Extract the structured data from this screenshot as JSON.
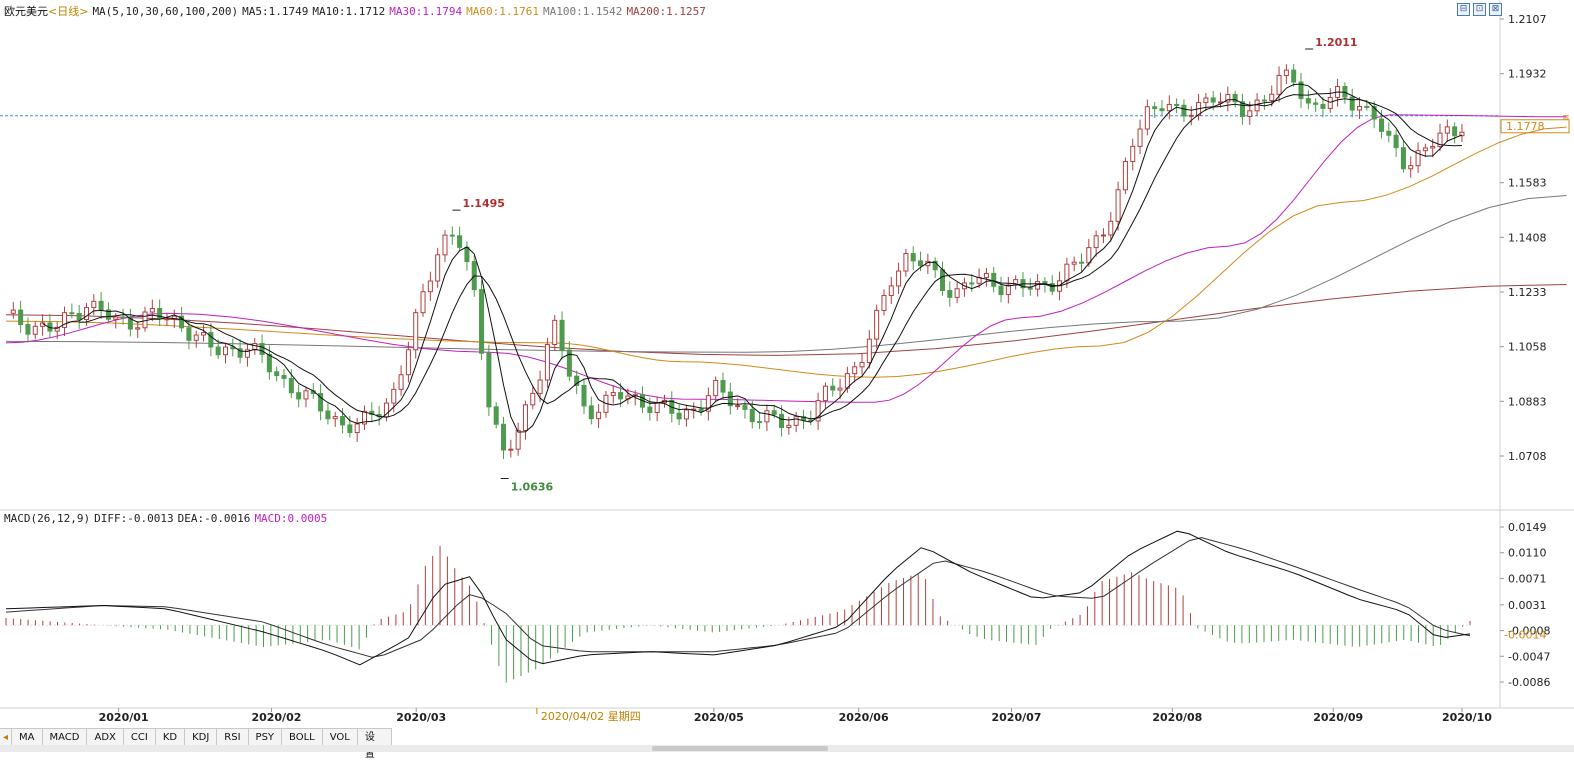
{
  "header": {
    "symbol": "欧元美元",
    "period": "<日线>",
    "ma_label": "MA(5,10,30,60,100,200)",
    "ma_values": [
      {
        "text": "MA5:1.1749",
        "color": "#111111"
      },
      {
        "text": "MA10:1.1712",
        "color": "#111111"
      },
      {
        "text": "MA30:1.1794",
        "color": "#c020c0"
      },
      {
        "text": "MA60:1.1761",
        "color": "#d08a1a"
      },
      {
        "text": "MA100:1.1542",
        "color": "#777777"
      },
      {
        "text": "MA200:1.1257",
        "color": "#a04040"
      }
    ]
  },
  "window_buttons": [
    "⊟",
    "⊡",
    "⊠"
  ],
  "price_axis": {
    "ticks": [
      "1.2107",
      "1.1932",
      "1.1758",
      "1.1583",
      "1.1408",
      "1.1233",
      "1.1058",
      "1.0883",
      "1.0708"
    ],
    "current_price": "1.1778"
  },
  "annotations": {
    "high_march": "1.1495",
    "low_march": "1.0636",
    "high_aug": "1.2011"
  },
  "macd": {
    "label": "MACD(26,12,9)",
    "diff": "DIFF:-0.0013",
    "dea": "DEA:-0.0016",
    "macd": "MACD:0.0005",
    "axis_ticks": [
      "0.0149",
      "0.0110",
      "0.0071",
      "0.0031",
      "-0.0008",
      "-0.0047",
      "-0.0086"
    ],
    "current": "-0.0014"
  },
  "date_axis": {
    "labels": [
      "2020/01",
      "2020/02",
      "2020/03",
      "2020/05",
      "2020/06",
      "2020/07",
      "2020/08",
      "2020/09",
      "2020/10"
    ],
    "cursor_label": "2020/04/02 星期四"
  },
  "tabs": [
    "MA",
    "MACD",
    "ADX",
    "CCI",
    "KD",
    "KDJ",
    "RSI",
    "PSY",
    "BOLL",
    "VOL",
    "设置"
  ],
  "colors": {
    "up": "#b04040",
    "down": "#4e9a4e",
    "ma5": "#111111",
    "ma10": "#111111",
    "ma30": "#c020c0",
    "ma60": "#d08a1a",
    "ma100": "#777777",
    "ma200": "#a04040",
    "price_line": "#3399dd"
  },
  "chart_data": {
    "type": "candlestick",
    "title": "欧元美元<日线>",
    "ylim": [
      1.06,
      1.2107
    ],
    "ma_keypoints": {
      "ma200": [
        [
          0,
          1.116
        ],
        [
          0.48,
          1.103
        ],
        [
          0.97,
          1.1257
        ]
      ],
      "ma100": [
        [
          0,
          1.1075
        ],
        [
          0.46,
          1.104
        ],
        [
          0.73,
          1.114
        ],
        [
          0.97,
          1.1542
        ]
      ],
      "ma60": [
        [
          0,
          1.114
        ],
        [
          0.34,
          1.107
        ],
        [
          0.42,
          1.101
        ],
        [
          0.54,
          1.096
        ],
        [
          0.68,
          1.106
        ],
        [
          0.83,
          1.152
        ],
        [
          0.97,
          1.1761
        ]
      ],
      "ma30": [
        [
          0,
          1.107
        ],
        [
          0.1,
          1.1165
        ],
        [
          0.3,
          1.104
        ],
        [
          0.42,
          1.089
        ],
        [
          0.54,
          1.088
        ],
        [
          0.63,
          1.115
        ],
        [
          0.76,
          1.138
        ],
        [
          0.86,
          1.18
        ],
        [
          0.97,
          1.1794
        ]
      ]
    },
    "closes": [
      {
        "x": 0.0,
        "y": 1.115
      },
      {
        "x": 0.03,
        "y": 1.111
      },
      {
        "x": 0.05,
        "y": 1.12
      },
      {
        "x": 0.07,
        "y": 1.113
      },
      {
        "x": 0.09,
        "y": 1.116
      },
      {
        "x": 0.11,
        "y": 1.113
      },
      {
        "x": 0.13,
        "y": 1.104
      },
      {
        "x": 0.15,
        "y": 1.106
      },
      {
        "x": 0.17,
        "y": 1.096
      },
      {
        "x": 0.19,
        "y": 1.088
      },
      {
        "x": 0.21,
        "y": 1.081
      },
      {
        "x": 0.22,
        "y": 1.08
      },
      {
        "x": 0.24,
        "y": 1.09
      },
      {
        "x": 0.25,
        "y": 1.105
      },
      {
        "x": 0.26,
        "y": 1.123
      },
      {
        "x": 0.27,
        "y": 1.14
      },
      {
        "x": 0.28,
        "y": 1.142
      },
      {
        "x": 0.29,
        "y": 1.125
      },
      {
        "x": 0.3,
        "y": 1.09
      },
      {
        "x": 0.31,
        "y": 1.07
      },
      {
        "x": 0.32,
        "y": 1.08
      },
      {
        "x": 0.33,
        "y": 1.095
      },
      {
        "x": 0.34,
        "y": 1.114
      },
      {
        "x": 0.35,
        "y": 1.097
      },
      {
        "x": 0.36,
        "y": 1.085
      },
      {
        "x": 0.38,
        "y": 1.09
      },
      {
        "x": 0.4,
        "y": 1.088
      },
      {
        "x": 0.42,
        "y": 1.083
      },
      {
        "x": 0.44,
        "y": 1.092
      },
      {
        "x": 0.46,
        "y": 1.085
      },
      {
        "x": 0.48,
        "y": 1.081
      },
      {
        "x": 0.5,
        "y": 1.084
      },
      {
        "x": 0.52,
        "y": 1.096
      },
      {
        "x": 0.53,
        "y": 1.1
      },
      {
        "x": 0.54,
        "y": 1.112
      },
      {
        "x": 0.55,
        "y": 1.128
      },
      {
        "x": 0.56,
        "y": 1.135
      },
      {
        "x": 0.57,
        "y": 1.132
      },
      {
        "x": 0.58,
        "y": 1.127
      },
      {
        "x": 0.59,
        "y": 1.123
      },
      {
        "x": 0.6,
        "y": 1.127
      },
      {
        "x": 0.62,
        "y": 1.126
      },
      {
        "x": 0.64,
        "y": 1.124
      },
      {
        "x": 0.66,
        "y": 1.13
      },
      {
        "x": 0.67,
        "y": 1.134
      },
      {
        "x": 0.68,
        "y": 1.142
      },
      {
        "x": 0.69,
        "y": 1.152
      },
      {
        "x": 0.7,
        "y": 1.17
      },
      {
        "x": 0.71,
        "y": 1.182
      },
      {
        "x": 0.72,
        "y": 1.185
      },
      {
        "x": 0.73,
        "y": 1.178
      },
      {
        "x": 0.74,
        "y": 1.183
      },
      {
        "x": 0.75,
        "y": 1.187
      },
      {
        "x": 0.76,
        "y": 1.183
      },
      {
        "x": 0.77,
        "y": 1.181
      },
      {
        "x": 0.78,
        "y": 1.185
      },
      {
        "x": 0.79,
        "y": 1.19
      },
      {
        "x": 0.8,
        "y": 1.192
      },
      {
        "x": 0.81,
        "y": 1.183
      },
      {
        "x": 0.82,
        "y": 1.184
      },
      {
        "x": 0.83,
        "y": 1.186
      },
      {
        "x": 0.84,
        "y": 1.184
      },
      {
        "x": 0.85,
        "y": 1.18
      },
      {
        "x": 0.86,
        "y": 1.17
      },
      {
        "x": 0.87,
        "y": 1.165
      },
      {
        "x": 0.88,
        "y": 1.168
      },
      {
        "x": 0.89,
        "y": 1.172
      },
      {
        "x": 0.9,
        "y": 1.175
      },
      {
        "x": 0.905,
        "y": 1.1778
      }
    ],
    "macd_diff": [
      [
        0,
        0.0025
      ],
      [
        0.06,
        0.003
      ],
      [
        0.1,
        0.0025
      ],
      [
        0.16,
        -0.001
      ],
      [
        0.2,
        -0.004
      ],
      [
        0.22,
        -0.006
      ],
      [
        0.25,
        -0.002
      ],
      [
        0.27,
        0.006
      ],
      [
        0.29,
        0.0075
      ],
      [
        0.31,
        -0.002
      ],
      [
        0.33,
        -0.006
      ],
      [
        0.36,
        -0.0045
      ],
      [
        0.4,
        -0.004
      ],
      [
        0.44,
        -0.0045
      ],
      [
        0.48,
        -0.003
      ],
      [
        0.52,
        0.0
      ],
      [
        0.55,
        0.008
      ],
      [
        0.57,
        0.012
      ],
      [
        0.6,
        0.008
      ],
      [
        0.64,
        0.004
      ],
      [
        0.67,
        0.005
      ],
      [
        0.7,
        0.011
      ],
      [
        0.73,
        0.0145
      ],
      [
        0.76,
        0.011
      ],
      [
        0.8,
        0.008
      ],
      [
        0.84,
        0.004
      ],
      [
        0.87,
        0.002
      ],
      [
        0.89,
        -0.002
      ],
      [
        0.91,
        -0.0013
      ]
    ],
    "macd_dea": [
      [
        0,
        0.002
      ],
      [
        0.06,
        0.003
      ],
      [
        0.1,
        0.0028
      ],
      [
        0.16,
        0.0005
      ],
      [
        0.2,
        -0.003
      ],
      [
        0.23,
        -0.005
      ],
      [
        0.26,
        -0.002
      ],
      [
        0.28,
        0.003
      ],
      [
        0.29,
        0.005
      ],
      [
        0.31,
        0.002
      ],
      [
        0.33,
        -0.003
      ],
      [
        0.36,
        -0.004
      ],
      [
        0.4,
        -0.004
      ],
      [
        0.44,
        -0.004
      ],
      [
        0.48,
        -0.003
      ],
      [
        0.52,
        -0.001
      ],
      [
        0.55,
        0.005
      ],
      [
        0.58,
        0.01
      ],
      [
        0.61,
        0.008
      ],
      [
        0.65,
        0.0045
      ],
      [
        0.68,
        0.004
      ],
      [
        0.71,
        0.009
      ],
      [
        0.74,
        0.0135
      ],
      [
        0.77,
        0.0115
      ],
      [
        0.8,
        0.009
      ],
      [
        0.84,
        0.0055
      ],
      [
        0.87,
        0.003
      ],
      [
        0.89,
        -0.0005
      ],
      [
        0.91,
        -0.0016
      ]
    ]
  }
}
